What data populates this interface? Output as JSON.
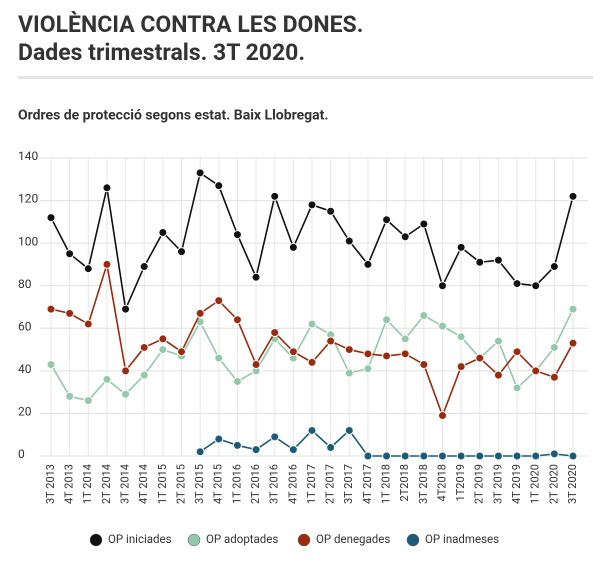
{
  "header": {
    "title": "VIOLÈNCIA CONTRA LES DONES.",
    "subtitle": "Dades trimestrals. 3T 2020."
  },
  "chart_data": {
    "type": "line",
    "title": "Ordres de protecció segons estat. Baix Llobregat.",
    "categories": [
      "3T 2013",
      "4T 2013",
      "1T 2014",
      "2T 2014",
      "3T 2014",
      "4T 2014",
      "1T 2015",
      "2T 2015",
      "3T 2015",
      "4T 2015",
      "1T 2016",
      "2T 2016",
      "3T 2016",
      "4T 2016",
      "1T 2017",
      "2T 2017",
      "3T 2017",
      "4T 2017",
      "1T 2018",
      "2T2018",
      "3T 2018",
      "4T2018",
      "1T2019",
      "2T 2019",
      "3T 2019",
      "4T 2019",
      "1T 2020",
      "2T 2020",
      "3T 2020"
    ],
    "series": [
      {
        "name": "OP iniciades",
        "color": "#111111",
        "values": [
          112,
          95,
          88,
          126,
          69,
          89,
          105,
          96,
          133,
          127,
          104,
          84,
          122,
          98,
          118,
          115,
          101,
          90,
          111,
          103,
          109,
          80,
          98,
          91,
          92,
          81,
          80,
          89,
          122
        ]
      },
      {
        "name": "OP adoptades",
        "color": "#93c9aa",
        "values": [
          43,
          28,
          26,
          36,
          29,
          38,
          50,
          47,
          63,
          46,
          35,
          40,
          55,
          46,
          62,
          57,
          39,
          41,
          64,
          55,
          66,
          61,
          56,
          46,
          54,
          32,
          40,
          51,
          69
        ]
      },
      {
        "name": "OP denegades",
        "color": "#9c2a0e",
        "values": [
          69,
          67,
          62,
          90,
          40,
          51,
          55,
          49,
          67,
          73,
          64,
          43,
          58,
          49,
          44,
          54,
          50,
          48,
          47,
          48,
          43,
          19,
          42,
          46,
          38,
          49,
          40,
          37,
          53
        ]
      },
      {
        "name": "OP inadmeses",
        "color": "#1b5a78",
        "values": [
          null,
          null,
          null,
          null,
          null,
          null,
          null,
          null,
          2,
          8,
          5,
          3,
          9,
          3,
          12,
          4,
          12,
          0,
          0,
          0,
          0,
          0,
          0,
          0,
          0,
          0,
          0,
          1,
          0
        ]
      }
    ],
    "ylim": [
      0,
      140
    ],
    "yticks": [
      0,
      20,
      40,
      60,
      80,
      100,
      120,
      140
    ],
    "grid": true
  }
}
